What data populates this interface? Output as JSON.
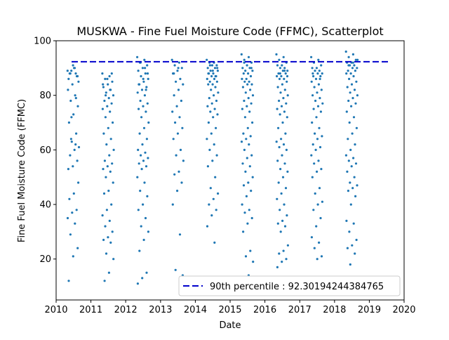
{
  "chart_data": {
    "type": "scatter",
    "title": "MUSKWA - Fine Fuel Moisture Code (FFMC), Scatterplot",
    "xlabel": "Date",
    "ylabel": "Fine Fuel Moisture Code (FFMC)",
    "xlim": [
      "2010-01-01",
      "2020-01-01"
    ],
    "ylim": [
      5,
      100
    ],
    "x_ticks": [
      "2010",
      "2011",
      "2012",
      "2013",
      "2014",
      "2015",
      "2016",
      "2017",
      "2018",
      "2019",
      "2020"
    ],
    "y_ticks": [
      20,
      40,
      60,
      80,
      100
    ],
    "grid": false,
    "legend_position": "lower-right",
    "point_color": "#1f77b4",
    "reference_line": {
      "label": "90th percentile : 92.30194244384765",
      "value": 92.30194244384765,
      "color": "#0000cc",
      "style": "dashed"
    },
    "seasons": [
      {
        "year": "2010",
        "start": "2010-05-01",
        "end": "2010-08-31",
        "values": [
          89,
          90,
          88,
          87,
          91,
          86,
          88,
          89,
          85,
          90,
          88,
          87,
          84,
          82,
          80,
          78,
          76,
          73,
          70,
          66,
          63,
          61,
          60,
          58,
          56,
          54,
          53,
          62,
          64,
          48,
          44,
          42,
          38,
          37,
          35,
          33,
          29,
          24,
          21,
          12,
          79,
          72
        ]
      },
      {
        "year": "2011",
        "start": "2011-05-01",
        "end": "2011-08-31",
        "values": [
          88,
          87,
          86,
          85,
          84,
          83,
          82,
          81,
          80,
          79,
          78,
          77,
          76,
          75,
          74,
          72,
          70,
          68,
          66,
          64,
          62,
          60,
          58,
          56,
          55,
          54,
          53,
          52,
          50,
          48,
          45,
          44,
          40,
          38,
          36,
          34,
          32,
          30,
          28,
          27,
          26,
          22,
          20,
          15,
          12,
          88,
          86,
          84,
          82,
          80
        ]
      },
      {
        "year": "2012",
        "start": "2012-05-01",
        "end": "2012-08-31",
        "values": [
          94,
          93,
          92,
          91,
          90,
          89,
          88,
          87,
          86,
          85,
          84,
          83,
          82,
          81,
          80,
          78,
          77,
          76,
          75,
          74,
          72,
          70,
          68,
          66,
          64,
          62,
          60,
          59,
          58,
          57,
          56,
          55,
          54,
          53,
          50,
          48,
          45,
          43,
          40,
          38,
          35,
          32,
          30,
          27,
          23,
          15,
          13,
          11,
          90,
          92,
          88,
          86,
          84,
          82
        ]
      },
      {
        "year": "2013",
        "start": "2013-05-01",
        "end": "2013-08-31",
        "values": [
          93,
          92,
          91,
          90,
          89,
          88,
          86,
          85,
          84,
          82,
          80,
          78,
          76,
          74,
          72,
          70,
          68,
          66,
          64,
          60,
          58,
          56,
          52,
          51,
          48,
          45,
          40,
          29,
          16,
          14,
          90,
          88
        ]
      },
      {
        "year": "2014",
        "start": "2014-05-01",
        "end": "2014-08-31",
        "values": [
          93,
          92,
          92,
          91,
          91,
          90,
          90,
          89,
          89,
          88,
          88,
          87,
          87,
          86,
          86,
          85,
          85,
          84,
          84,
          83,
          82,
          81,
          80,
          79,
          78,
          77,
          76,
          75,
          74,
          73,
          72,
          70,
          68,
          66,
          64,
          62,
          60,
          58,
          56,
          54,
          50,
          46,
          44,
          42,
          40,
          38,
          36,
          32,
          26,
          91,
          90,
          89,
          88,
          87
        ]
      },
      {
        "year": "2015",
        "start": "2015-05-01",
        "end": "2015-08-31",
        "values": [
          95,
          94,
          93,
          92,
          91,
          90,
          90,
          89,
          89,
          88,
          88,
          87,
          86,
          86,
          85,
          85,
          84,
          84,
          83,
          82,
          81,
          80,
          79,
          78,
          77,
          76,
          75,
          74,
          72,
          70,
          68,
          66,
          65,
          64,
          63,
          62,
          60,
          58,
          57,
          55,
          54,
          52,
          50,
          48,
          47,
          45,
          43,
          40,
          38,
          37,
          35,
          33,
          30,
          23,
          21,
          19,
          14,
          92,
          90
        ]
      },
      {
        "year": "2016",
        "start": "2016-05-01",
        "end": "2016-08-31",
        "values": [
          95,
          94,
          93,
          92,
          91,
          91,
          90,
          90,
          89,
          89,
          88,
          88,
          87,
          87,
          86,
          86,
          85,
          84,
          83,
          82,
          81,
          80,
          79,
          78,
          77,
          76,
          75,
          74,
          73,
          72,
          70,
          68,
          66,
          64,
          63,
          62,
          61,
          60,
          58,
          56,
          55,
          53,
          52,
          50,
          48,
          46,
          44,
          42,
          40,
          38,
          36,
          34,
          33,
          32,
          30,
          25,
          23,
          22,
          20,
          19,
          17,
          89,
          88,
          87
        ]
      },
      {
        "year": "2017",
        "start": "2017-05-01",
        "end": "2017-08-31",
        "values": [
          94,
          93,
          92,
          91,
          90,
          90,
          89,
          89,
          88,
          88,
          87,
          87,
          86,
          85,
          84,
          83,
          82,
          81,
          80,
          79,
          78,
          77,
          76,
          75,
          74,
          72,
          70,
          68,
          66,
          65,
          64,
          62,
          61,
          60,
          58,
          56,
          55,
          53,
          52,
          50,
          46,
          44,
          41,
          40,
          38,
          35,
          32,
          28,
          26,
          24,
          21,
          20,
          88,
          86
        ]
      },
      {
        "year": "2018",
        "start": "2018-05-01",
        "end": "2018-08-31",
        "values": [
          96,
          95,
          94,
          93,
          92,
          92,
          91,
          91,
          90,
          90,
          89,
          89,
          88,
          88,
          87,
          86,
          85,
          84,
          83,
          82,
          81,
          80,
          79,
          78,
          77,
          76,
          74,
          72,
          70,
          68,
          66,
          64,
          62,
          60,
          58,
          57,
          56,
          55,
          54,
          52,
          50,
          48,
          47,
          46,
          45,
          43,
          40,
          34,
          33,
          30,
          27,
          25,
          24,
          22,
          18,
          93,
          92,
          91
        ]
      }
    ]
  }
}
